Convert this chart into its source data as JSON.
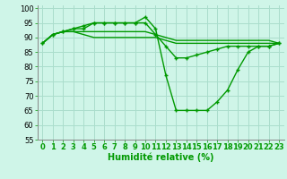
{
  "title": "",
  "xlabel": "Humidité relative (%)",
  "ylabel": "",
  "background_color": "#cff5e8",
  "grid_color": "#aaddcc",
  "line_color": "#009900",
  "marker_color": "#009900",
  "xlim": [
    -0.5,
    23.5
  ],
  "ylim": [
    55,
    101
  ],
  "yticks": [
    55,
    60,
    65,
    70,
    75,
    80,
    85,
    90,
    95,
    100
  ],
  "xticks": [
    0,
    1,
    2,
    3,
    4,
    5,
    6,
    7,
    8,
    9,
    10,
    11,
    12,
    13,
    14,
    15,
    16,
    17,
    18,
    19,
    20,
    21,
    22,
    23
  ],
  "series": [
    [
      88,
      91,
      92,
      93,
      93,
      95,
      95,
      95,
      95,
      95,
      97,
      93,
      77,
      65,
      65,
      65,
      65,
      68,
      72,
      79,
      85,
      87,
      87,
      88
    ],
    [
      88,
      91,
      92,
      93,
      94,
      95,
      95,
      95,
      95,
      95,
      95,
      91,
      87,
      83,
      83,
      84,
      85,
      86,
      87,
      87,
      87,
      87,
      87,
      88
    ],
    [
      88,
      91,
      92,
      92,
      92,
      92,
      92,
      92,
      92,
      92,
      92,
      91,
      90,
      89,
      89,
      89,
      89,
      89,
      89,
      89,
      89,
      89,
      89,
      88
    ],
    [
      88,
      91,
      92,
      92,
      91,
      90,
      90,
      90,
      90,
      90,
      90,
      90,
      89,
      88,
      88,
      88,
      88,
      88,
      88,
      88,
      88,
      88,
      88,
      88
    ]
  ],
  "marker_series": [
    0,
    1
  ],
  "xlabel_fontsize": 7,
  "tick_fontsize": 6,
  "line_width": 1.0,
  "marker_size": 3.5,
  "marker_ew": 1.0
}
